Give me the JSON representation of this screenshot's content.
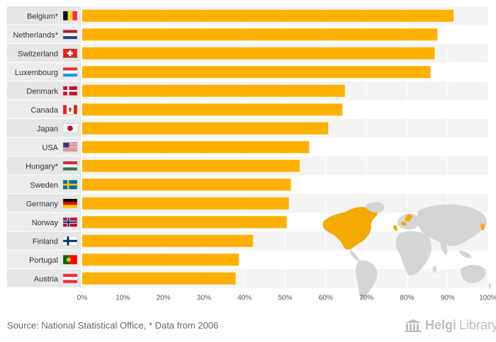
{
  "chart_data": {
    "type": "bar",
    "orientation": "horizontal",
    "categories": [
      "Belgium*",
      "Netherlands*",
      "Switzerland",
      "Luxembourg",
      "Denmark",
      "Canada",
      "Japan",
      "USA",
      "Hungary*",
      "Sweden",
      "Germany",
      "Norway",
      "Finland",
      "Portugal",
      "Austria"
    ],
    "values": [
      91.5,
      87.5,
      86.8,
      85.8,
      64.7,
      64.1,
      60.6,
      55.9,
      53.6,
      51.4,
      50.9,
      50.4,
      42.1,
      38.6,
      37.8
    ],
    "unit": "%",
    "xlim": [
      0,
      100
    ],
    "xticks": [
      "0%",
      "10%",
      "20%",
      "30%",
      "40%",
      "50%",
      "60%",
      "70%",
      "80%",
      "90%",
      "100%"
    ],
    "flags": [
      "flag-belgium",
      "flag-netherlands",
      "flag-switzerland",
      "flag-luxembourg",
      "flag-denmark",
      "flag-canada",
      "flag-japan",
      "flag-usa",
      "flag-hungary",
      "flag-sweden",
      "flag-germany",
      "flag-norway",
      "flag-finland",
      "flag-portugal",
      "flag-austria"
    ],
    "bar_color": "#ffb000",
    "highlight_color": "#f2a900",
    "map_color": "#d5d5d5"
  },
  "footer": {
    "source": "Source: National Statistical Office, * Data from 2006"
  },
  "logo": {
    "part1": "Helgi",
    "part2": "Library."
  }
}
